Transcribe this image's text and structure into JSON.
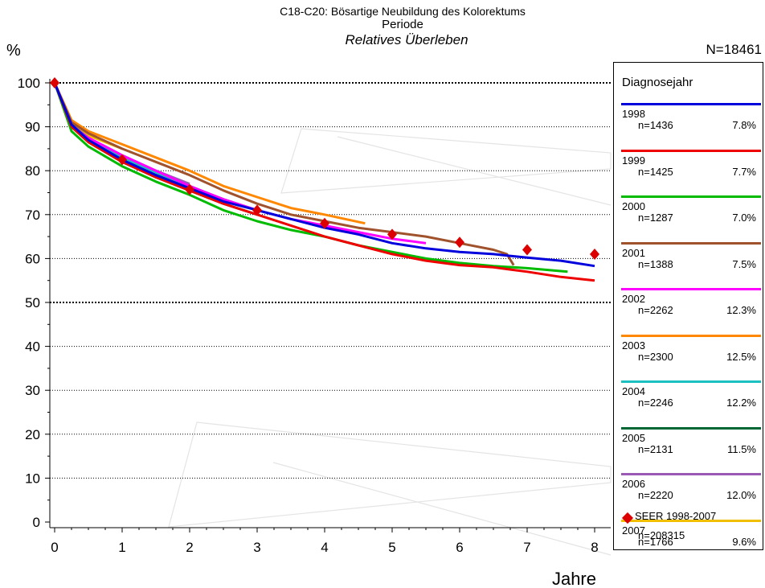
{
  "chart_data": {
    "type": "line",
    "title": "C18-C20: Bösartige Neubildung des Kolorektums",
    "subtitle": "Periode",
    "subtitle2": "Relatives Überleben",
    "ylabel": "%",
    "xlabel": "Jahre",
    "total_n": "N=18461",
    "xlim": [
      0,
      8
    ],
    "ylim": [
      0,
      100
    ],
    "x_ticks": [
      "0",
      "1",
      "2",
      "3",
      "4",
      "5",
      "6",
      "7",
      "8"
    ],
    "y_ticks": [
      "0",
      "10",
      "20",
      "30",
      "40",
      "50",
      "60",
      "70",
      "80",
      "90",
      "100"
    ],
    "legend_title": "Diagnosejahr",
    "legend_position": "right",
    "series": [
      {
        "name": "1998",
        "n": "n=1436",
        "pct": "7.8%",
        "color": "#0000dd",
        "x": [
          0,
          0.25,
          0.5,
          1,
          1.5,
          2,
          2.5,
          3,
          3.5,
          4,
          4.5,
          5,
          5.5,
          6,
          6.5,
          7,
          7.5,
          8
        ],
        "y": [
          100,
          90.5,
          87,
          82.5,
          79,
          76,
          73,
          71,
          69,
          67,
          65.5,
          63.5,
          62.3,
          61.5,
          61,
          60.2,
          59.5,
          58.3
        ]
      },
      {
        "name": "1999",
        "n": "n=1425",
        "pct": "7.7%",
        "color": "#ee0000",
        "x": [
          0,
          0.25,
          0.5,
          1,
          1.5,
          2,
          2.5,
          3,
          3.5,
          4,
          4.5,
          5,
          5.5,
          6,
          6.5,
          7,
          7.5,
          8
        ],
        "y": [
          100,
          90,
          86.5,
          82,
          78.5,
          75.5,
          72.5,
          70,
          67.5,
          65,
          63,
          61,
          59.5,
          58.5,
          58,
          57,
          55.8,
          55
        ]
      },
      {
        "name": "2000",
        "n": "n=1287",
        "pct": "7.0%",
        "color": "#00bb00",
        "x": [
          0,
          0.25,
          0.5,
          1,
          1.5,
          2,
          2.5,
          3,
          3.5,
          4,
          4.5,
          5,
          5.5,
          6,
          6.5,
          7,
          7.6
        ],
        "y": [
          100,
          89,
          85.5,
          81,
          77.5,
          74.5,
          71,
          68.5,
          66.5,
          65,
          63,
          61.5,
          60,
          59,
          58.3,
          57.8,
          57
        ]
      },
      {
        "name": "2001",
        "n": "n=1388",
        "pct": "7.5%",
        "color": "#a0522d",
        "x": [
          0,
          0.25,
          0.5,
          1,
          1.5,
          2,
          2.5,
          3,
          3.5,
          4,
          4.5,
          5,
          5.5,
          6,
          6.5,
          6.7,
          6.8
        ],
        "y": [
          100,
          91,
          88.5,
          85,
          82,
          79,
          75.5,
          72.5,
          70,
          68.5,
          67,
          66,
          65,
          63.5,
          62,
          61,
          58.5
        ]
      },
      {
        "name": "2002",
        "n": "n=2262",
        "pct": "12.3%",
        "color": "#ff00ff",
        "x": [
          0,
          0.25,
          0.5,
          1,
          1.5,
          2,
          2.5,
          3,
          3.5,
          4,
          4.5,
          5,
          5.5
        ],
        "y": [
          100,
          90,
          87.5,
          83.5,
          80,
          76.5,
          73.5,
          71,
          69,
          67.5,
          66,
          64.5,
          63.5
        ]
      },
      {
        "name": "2003",
        "n": "n=2300",
        "pct": "12.5%",
        "color": "#ff8800",
        "x": [
          0,
          0.25,
          0.5,
          1,
          1.5,
          2,
          2.5,
          3,
          3.5,
          4,
          4.6
        ],
        "y": [
          100,
          91.5,
          89,
          86,
          83,
          80,
          76.5,
          74,
          71.5,
          70,
          68
        ]
      },
      {
        "name": "2004",
        "n": "n=2246",
        "pct": "12.2%",
        "color": "#1cc0c0",
        "x": [
          0,
          0.25,
          0.5,
          1,
          1.5,
          2,
          2.5,
          3,
          3.5
        ],
        "y": [
          100,
          90,
          87,
          83,
          79.5,
          76.5,
          73.5,
          71,
          69
        ]
      },
      {
        "name": "2005",
        "n": "n=2131",
        "pct": "11.5%",
        "color": "#006633",
        "x": [
          0,
          0.25,
          0.5,
          1,
          1.5,
          2,
          2.5,
          3
        ],
        "y": [
          100,
          90,
          86.5,
          82,
          78.5,
          75.5,
          72.5,
          70
        ]
      },
      {
        "name": "2006",
        "n": "n=2220",
        "pct": "12.0%",
        "color": "#9b59b6",
        "x": [
          0,
          0.25,
          0.5,
          1,
          1.5,
          2
        ],
        "y": [
          100,
          90.5,
          87.5,
          83.5,
          80,
          77
        ]
      },
      {
        "name": "2007",
        "n": "n=1766",
        "pct": "9.6%",
        "color": "#f0c000",
        "x": [
          0,
          0.25,
          0.5,
          1
        ],
        "y": [
          100,
          91,
          88,
          85
        ]
      }
    ],
    "reference": {
      "name": "SEER 1998-2007",
      "n": "n=208315",
      "color": "#dd0000",
      "x": [
        0,
        1,
        2,
        3,
        4,
        5,
        6,
        7,
        8
      ],
      "y": [
        100,
        82.5,
        75.7,
        71,
        68,
        65.5,
        63.7,
        62,
        61
      ]
    }
  }
}
